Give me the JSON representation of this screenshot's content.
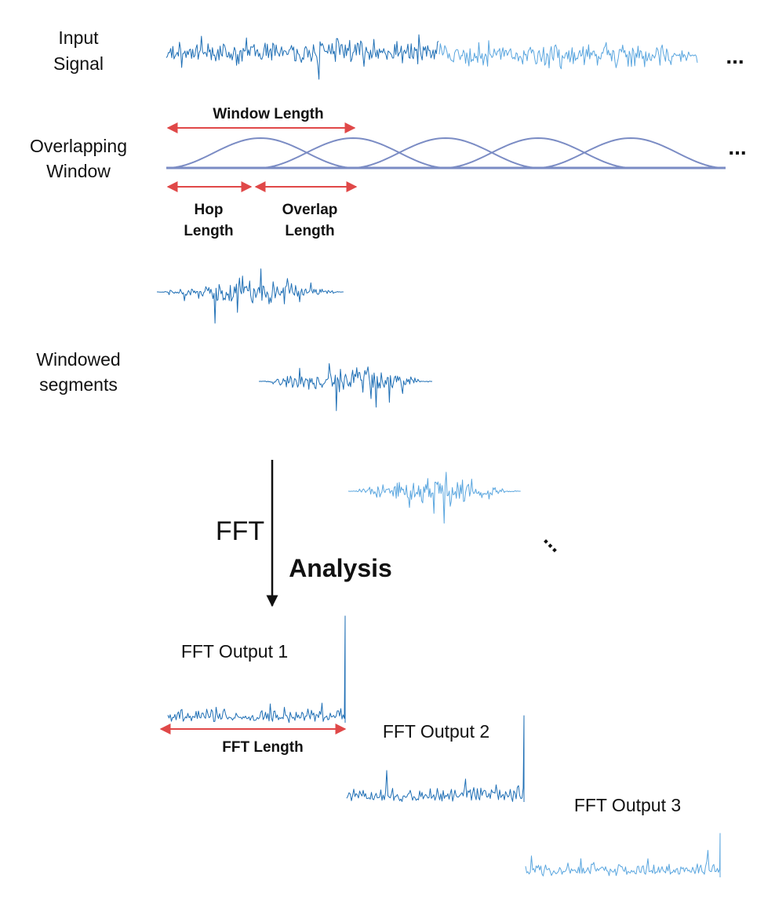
{
  "labels": {
    "input_signal_line1": "Input",
    "input_signal_line2": "Signal",
    "overlapping_window_line1": "Overlapping",
    "overlapping_window_line2": "Window",
    "windowed_segments_line1": "Windowed",
    "windowed_segments_line2": "segments",
    "window_length": "Window Length",
    "hop_length_line1": "Hop",
    "hop_length_line2": "Length",
    "overlap_length_line1": "Overlap",
    "overlap_length_line2": "Length",
    "fft": "FFT",
    "analysis": "Analysis",
    "fft_output_1": "FFT Output 1",
    "fft_output_2": "FFT Output 2",
    "fft_output_3": "FFT Output 3",
    "fft_length": "FFT Length",
    "ellipsis_input": "...",
    "ellipsis_window": "...",
    "ellipsis_segments": "..."
  },
  "colors": {
    "signal_dark": "#1f6fb5",
    "signal_light": "#5aa6df",
    "window_curve": "#7b8cc4",
    "arrow_red": "#e04848",
    "text": "#111111"
  }
}
